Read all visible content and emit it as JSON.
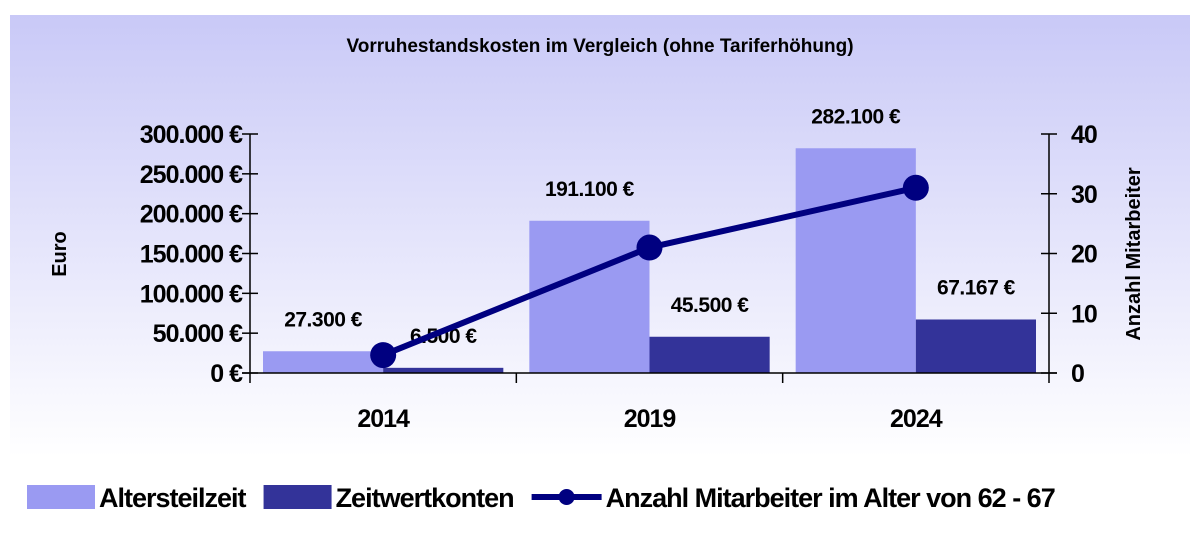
{
  "chart_data": {
    "type": "bar",
    "title": "Vorruhestandskosten im Vergleich (ohne Tariferhöhung)",
    "categories": [
      "2014",
      "2019",
      "2024"
    ],
    "series": [
      {
        "name": "Altersteilzeit",
        "type": "bar",
        "axis": "left",
        "color": "#9a9af2",
        "values": [
          27300,
          191100,
          282100
        ],
        "labels": [
          "27.300 €",
          "191.100 €",
          "282.100 €"
        ]
      },
      {
        "name": "Zeitwertkonten",
        "type": "bar",
        "axis": "left",
        "color": "#333399",
        "values": [
          6500,
          45500,
          67167
        ],
        "labels": [
          "6.500 €",
          "45.500 €",
          "67.167 €"
        ]
      },
      {
        "name": "Anzahl Mitarbeiter im Alter von 62 - 67",
        "type": "line",
        "axis": "right",
        "color": "#000080",
        "values": [
          3,
          21,
          31
        ]
      }
    ],
    "ylabel": "Euro",
    "ylim": [
      0,
      300000
    ],
    "yticks": [
      "0 €",
      "50.000 €",
      "100.000 €",
      "150.000 €",
      "200.000 €",
      "250.000 €",
      "300.000 €"
    ],
    "y2label": "Anzahl Mitarbeiter",
    "y2lim": [
      0,
      40
    ],
    "y2ticks": [
      "0",
      "10",
      "20",
      "30",
      "40"
    ],
    "grid": false,
    "legend_position": "bottom",
    "background": [
      "#c9c9f7",
      "#ffffff"
    ]
  }
}
